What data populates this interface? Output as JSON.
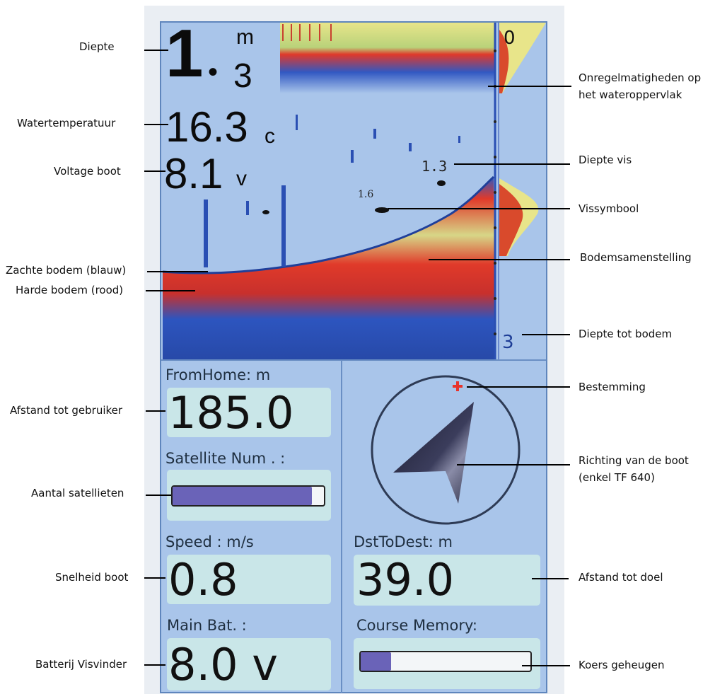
{
  "colors": {
    "screen": "#a9c5ea",
    "panel_box": "#c9e6e8",
    "bar_fill": "#6a63b8",
    "hard_bottom": "#e03a2a",
    "soft_bottom": "#3a63c6",
    "destination_marker": "#e8332b"
  },
  "readouts": {
    "depth_value_int": "1",
    "depth_value_dec": "3",
    "depth_unit": "m",
    "temperature": "16.3",
    "temperature_unit": "c",
    "voltage": "8.1",
    "voltage_unit": "v",
    "scale_top": "0",
    "scale_bottom": "3",
    "fish_depth_1": "1.3",
    "fish_depth_2": "1.6"
  },
  "panels": {
    "from_home_label": "FromHome: m",
    "from_home_value": "185.0",
    "satellite_label": "Satellite Num .  :",
    "satellite_level": 0.92,
    "speed_label": "Speed : m/s",
    "speed_value": "0.8",
    "main_bat_label": "Main Bat.   :",
    "main_bat_value": "8.0 v",
    "dst_label": "DstToDest: m",
    "dst_value": "39.0",
    "course_label": "Course  Memory:",
    "course_level": 0.18
  },
  "annotations": {
    "left": {
      "diepte": "Diepte",
      "watertemperatuur": "Watertemperatuur",
      "voltage_boot": "Voltage boot",
      "zachte_bodem": "Zachte bodem (blauw)",
      "harde_bodem": "Harde bodem (rood)",
      "afstand_gebruiker": "Afstand tot gebruiker",
      "aantal_satellieten": "Aantal satellieten",
      "snelheid_boot": "Snelheid boot",
      "batterij_visvinder": "Batterij Visvinder"
    },
    "right": {
      "onregelmatigheden_1": "Onregelmatigheden op",
      "onregelmatigheden_2": "het wateroppervlak",
      "diepte_vis": "Diepte vis",
      "vissymbool": "Vissymbool",
      "bodemsamenstelling": "Bodemsamenstelling",
      "diepte_bodem": "Diepte tot bodem",
      "bestemming": "Bestemming",
      "richting_1": "Richting van de boot",
      "richting_2": "(enkel TF 640)",
      "afstand_doel": "Afstand tot doel",
      "koers_geheugen": "Koers geheugen"
    }
  }
}
